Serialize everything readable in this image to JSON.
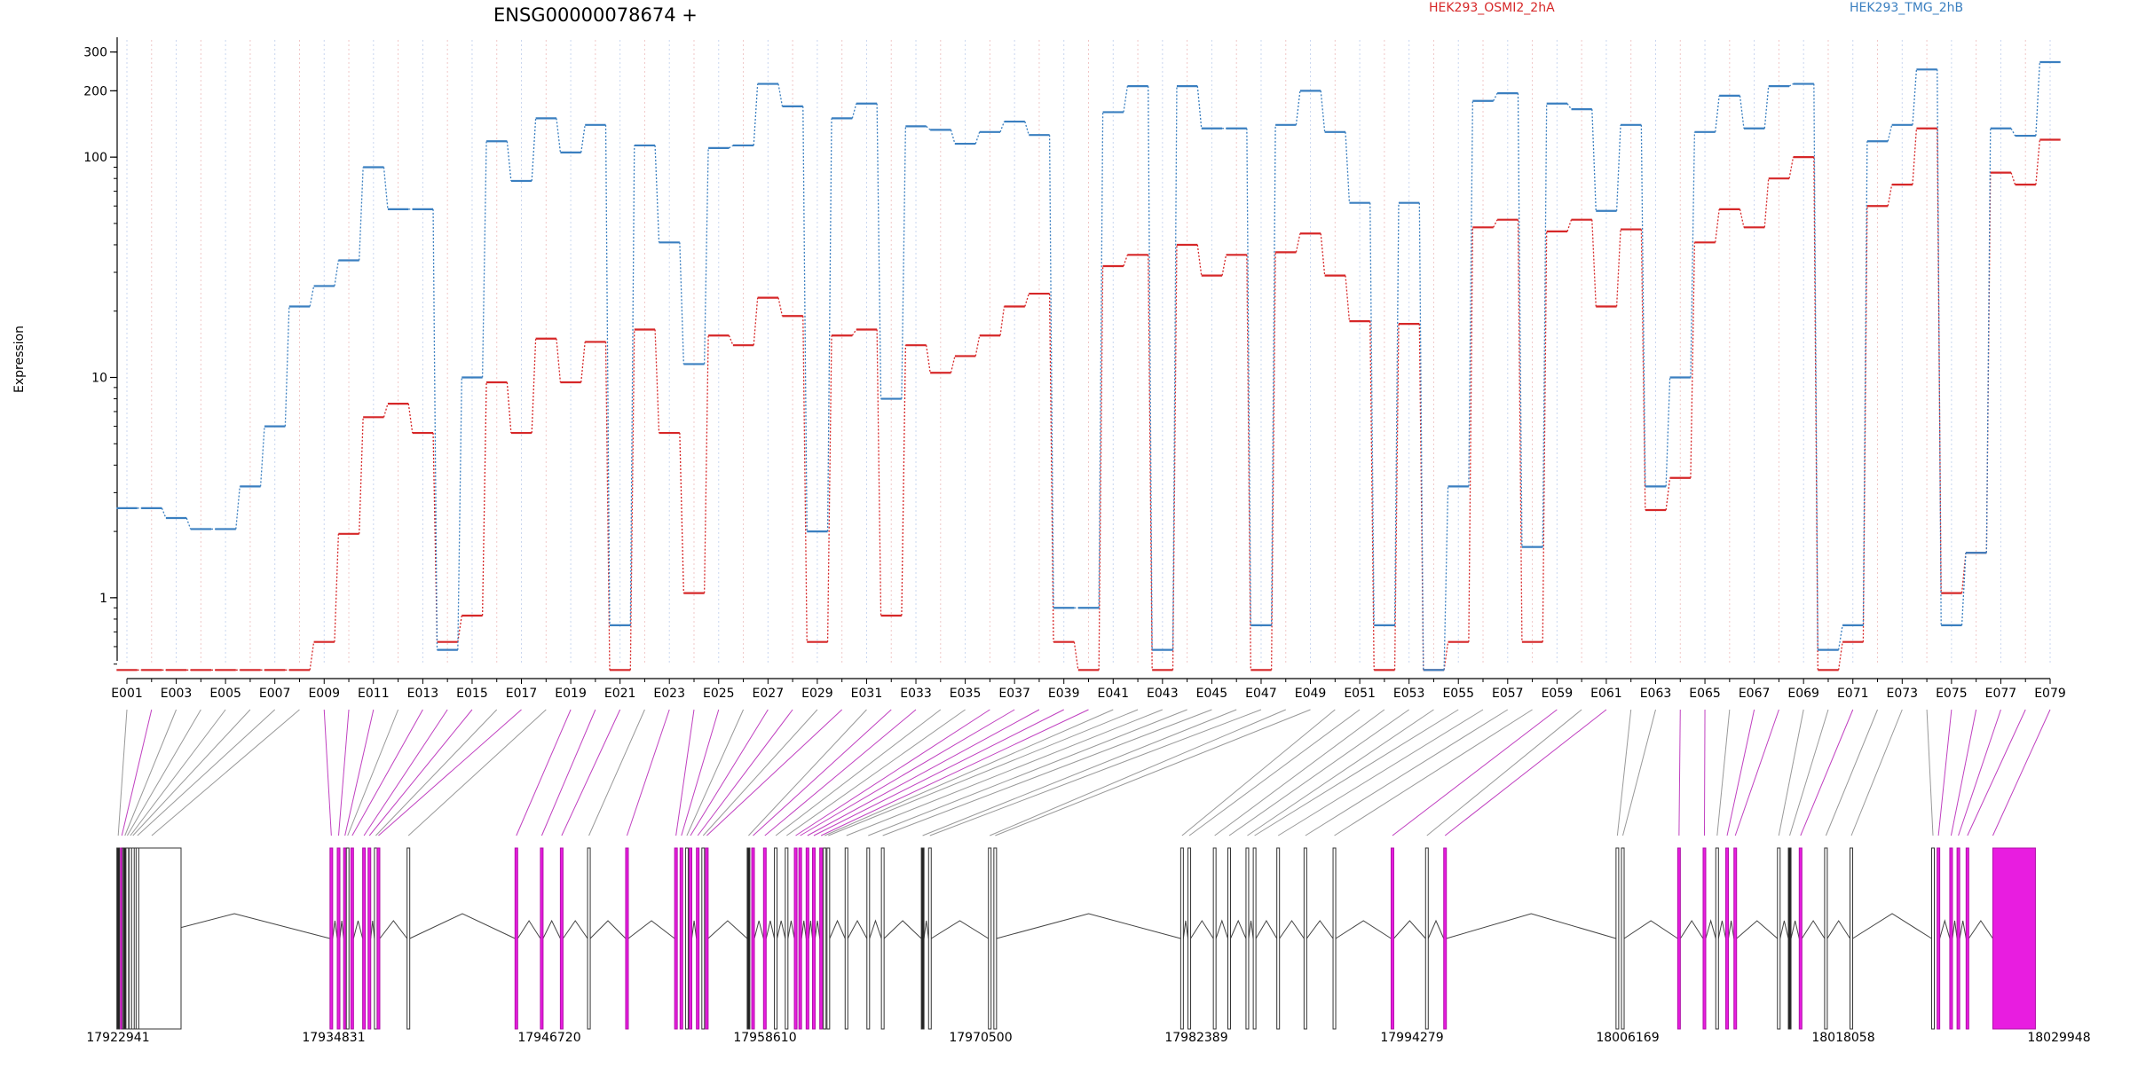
{
  "chart_data": {
    "type": "line",
    "title": "ENSG00000078674 +",
    "ylabel": "Expression",
    "yscale": "log",
    "ylim": [
      0.45,
      350
    ],
    "yticks": [
      1,
      10,
      100,
      200,
      300
    ],
    "ytick_labels": [
      "1",
      "10",
      "100",
      "200",
      "300"
    ],
    "grid": "vertical dotted per exon",
    "legend_placement": "top-right",
    "categories": [
      "E001",
      "E002",
      "E003",
      "E004",
      "E005",
      "E006",
      "E007",
      "E008",
      "E009",
      "E010",
      "E011",
      "E012",
      "E013",
      "E014",
      "E015",
      "E016",
      "E017",
      "E018",
      "E019",
      "E020",
      "E021",
      "E022",
      "E023",
      "E024",
      "E025",
      "E026",
      "E027",
      "E028",
      "E029",
      "E030",
      "E031",
      "E032",
      "E033",
      "E034",
      "E035",
      "E036",
      "E037",
      "E038",
      "E039",
      "E040",
      "E041",
      "E042",
      "E043",
      "E044",
      "E045",
      "E046",
      "E047",
      "E048",
      "E049",
      "E050",
      "E051",
      "E052",
      "E053",
      "E054",
      "E055",
      "E056",
      "E057",
      "E058",
      "E059",
      "E060",
      "E061",
      "E062",
      "E063",
      "E064",
      "E065",
      "E066",
      "E067",
      "E068",
      "E069",
      "E070",
      "E071",
      "E072",
      "E073",
      "E074",
      "E075",
      "E076",
      "E077",
      "E078",
      "E079"
    ],
    "xtick_labels": [
      "E001",
      "E003",
      "E005",
      "E007",
      "E009",
      "E011",
      "E013",
      "E015",
      "E017",
      "E019",
      "E021",
      "E023",
      "E025",
      "E027",
      "E029",
      "E031",
      "E033",
      "E035",
      "E037",
      "E039",
      "E041",
      "E043",
      "E045",
      "E047",
      "E049",
      "E051",
      "E053",
      "E055",
      "E057",
      "E059",
      "E061",
      "E063",
      "E065",
      "E067",
      "E069",
      "E071",
      "E073",
      "E075",
      "E077",
      "E079"
    ],
    "series": [
      {
        "name": "HEK293_OSMI2_2hA",
        "color": "#d62728",
        "values": [
          0.47,
          0.47,
          0.47,
          0.47,
          0.47,
          0.47,
          0.47,
          0.47,
          0.63,
          1.95,
          6.6,
          7.6,
          5.6,
          0.63,
          0.83,
          9.5,
          5.6,
          15,
          9.5,
          14.5,
          0.47,
          16.5,
          5.6,
          1.05,
          15.5,
          14,
          23,
          19,
          0.63,
          15.5,
          16.5,
          0.83,
          14,
          10.5,
          12.5,
          15.5,
          21,
          24,
          0.63,
          0.47,
          32,
          36,
          0.47,
          40,
          29,
          36,
          0.47,
          37,
          45,
          29,
          18,
          0.47,
          17.5,
          0.47,
          0.63,
          48,
          52,
          0.63,
          46,
          52,
          21,
          47,
          2.5,
          3.5,
          41,
          58,
          48,
          80,
          100,
          0.47,
          0.63,
          60,
          75,
          135,
          1.05,
          1.6,
          85,
          75,
          120
        ]
      },
      {
        "name": "HEK293_TMG_2hB",
        "color": "#3a7fc0",
        "values": [
          2.55,
          2.55,
          2.3,
          2.05,
          2.05,
          3.2,
          6,
          21,
          26,
          34,
          90,
          58,
          58,
          0.58,
          10,
          118,
          78,
          150,
          105,
          140,
          0.75,
          113,
          41,
          11.5,
          110,
          113,
          215,
          170,
          2,
          150,
          175,
          8,
          138,
          133,
          115,
          130,
          145,
          126,
          0.9,
          0.9,
          160,
          210,
          0.58,
          210,
          135,
          135,
          0.75,
          140,
          200,
          130,
          62,
          0.75,
          62,
          0.47,
          3.2,
          180,
          195,
          1.7,
          175,
          165,
          57,
          140,
          3.2,
          10,
          130,
          190,
          135,
          210,
          215,
          0.58,
          0.75,
          118,
          140,
          250,
          0.75,
          1.6,
          135,
          125,
          270
        ]
      }
    ],
    "annotations": {
      "genomic_coordinates": [
        "17922941",
        "17934831",
        "17946720",
        "17958610",
        "17970500",
        "17982389",
        "17994279",
        "18006169",
        "18018058",
        "18029948"
      ]
    }
  }
}
